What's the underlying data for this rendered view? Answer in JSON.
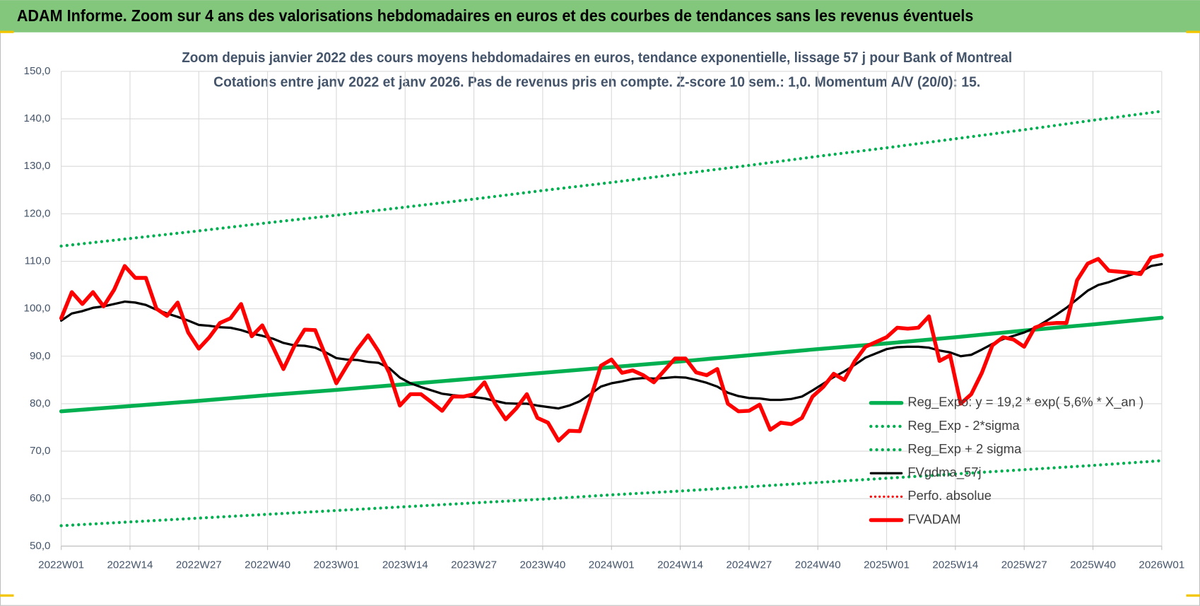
{
  "header": {
    "title": "ADAM Informe. Zoom sur 4 ans des valorisations hebdomadaires en euros et des courbes de tendances sans les revenus éventuels"
  },
  "chart_data": {
    "type": "line",
    "title": "Zoom depuis janvier 2022 des cours moyens hebdomadaires en euros, tendance exponentielle, lissage 57 j pour Bank of Montreal",
    "subtitle": "Cotations entre janv 2022 et janv 2026. Pas de revenus pris en compte. Z-score 10 sem.: 1,0. Momentum A/V (20/0): 15.",
    "legend": "right",
    "grid": true,
    "xlim": [
      0,
      208
    ],
    "xticks": [
      {
        "value": 0,
        "label": "2022W01"
      },
      {
        "value": 13,
        "label": "2022W14"
      },
      {
        "value": 26,
        "label": "2022W27"
      },
      {
        "value": 39,
        "label": "2022W40"
      },
      {
        "value": 52,
        "label": "2023W01"
      },
      {
        "value": 65,
        "label": "2023W14"
      },
      {
        "value": 78,
        "label": "2023W27"
      },
      {
        "value": 91,
        "label": "2023W40"
      },
      {
        "value": 104,
        "label": "2024W01"
      },
      {
        "value": 117,
        "label": "2024W14"
      },
      {
        "value": 130,
        "label": "2024W27"
      },
      {
        "value": 143,
        "label": "2024W40"
      },
      {
        "value": 156,
        "label": "2025W01"
      },
      {
        "value": 169,
        "label": "2025W14"
      },
      {
        "value": 182,
        "label": "2025W27"
      },
      {
        "value": 195,
        "label": "2025W40"
      },
      {
        "value": 208,
        "label": "2026W01"
      }
    ],
    "ylim": [
      50,
      150
    ],
    "yticks": [
      {
        "value": 50,
        "label": "50,0"
      },
      {
        "value": 60,
        "label": "60,0"
      },
      {
        "value": 70,
        "label": "70,0"
      },
      {
        "value": 80,
        "label": "80,0"
      },
      {
        "value": 90,
        "label": "90,0"
      },
      {
        "value": 100,
        "label": "100,0"
      },
      {
        "value": 110,
        "label": "110,0"
      },
      {
        "value": 120,
        "label": "120,0"
      },
      {
        "value": 130,
        "label": "130,0"
      },
      {
        "value": 140,
        "label": "140,0"
      },
      {
        "value": 150,
        "label": "150,0"
      }
    ],
    "x": [
      0,
      2,
      4,
      6,
      8,
      10,
      12,
      14,
      16,
      18,
      20,
      22,
      24,
      26,
      28,
      30,
      32,
      34,
      36,
      38,
      40,
      42,
      44,
      46,
      48,
      50,
      52,
      54,
      56,
      58,
      60,
      62,
      64,
      66,
      68,
      70,
      72,
      74,
      76,
      78,
      80,
      82,
      84,
      86,
      88,
      90,
      92,
      94,
      96,
      98,
      100,
      102,
      104,
      106,
      108,
      110,
      112,
      114,
      116,
      118,
      120,
      122,
      124,
      126,
      128,
      130,
      132,
      134,
      136,
      138,
      140,
      142,
      144,
      146,
      148,
      150,
      152,
      154,
      156,
      158,
      160,
      162,
      164,
      166,
      168,
      170,
      172,
      174,
      176,
      178,
      180,
      182,
      184,
      186,
      188,
      190,
      192,
      194,
      196,
      198,
      200,
      202,
      204,
      206,
      208
    ],
    "series": [
      {
        "name": "Reg_Expo: y = 19,2 * exp( 5,6% *  X_an )",
        "color": "#00b050",
        "style": "solid",
        "width": 5,
        "x": [
          0,
          13,
          26,
          39,
          52,
          65,
          78,
          91,
          104,
          117,
          130,
          143,
          156,
          169,
          182,
          195,
          208
        ],
        "values": [
          78.4,
          79.5,
          80.6,
          81.8,
          82.9,
          84.1,
          85.3,
          86.5,
          87.7,
          88.9,
          90.2,
          91.5,
          92.7,
          94.0,
          95.4,
          96.7,
          98.1
        ]
      },
      {
        "name": "Reg_Exp - 2*sigma",
        "color": "#00b050",
        "style": "dotted",
        "width": 4,
        "x": [
          0,
          13,
          26,
          39,
          52,
          65,
          78,
          91,
          104,
          117,
          130,
          143,
          156,
          169,
          182,
          195,
          208
        ],
        "values": [
          54.3,
          55.1,
          55.9,
          56.7,
          57.5,
          58.3,
          59.1,
          59.9,
          60.8,
          61.6,
          62.5,
          63.4,
          64.3,
          65.2,
          66.1,
          67.0,
          68.0
        ]
      },
      {
        "name": "Reg_Exp + 2 sigma",
        "color": "#00b050",
        "style": "dotted",
        "width": 4,
        "x": [
          0,
          13,
          26,
          39,
          52,
          65,
          78,
          91,
          104,
          117,
          130,
          143,
          156,
          169,
          182,
          195,
          208
        ],
        "values": [
          113.2,
          114.8,
          116.4,
          118.1,
          119.7,
          121.4,
          123.1,
          124.9,
          126.6,
          128.4,
          130.2,
          132.1,
          133.9,
          135.8,
          137.7,
          139.7,
          141.6
        ]
      },
      {
        "name": "FVgdma_57j",
        "color": "#000000",
        "style": "solid",
        "width": 3,
        "values": [
          97.5,
          99,
          99.5,
          100.2,
          100.5,
          101,
          101.5,
          101.3,
          100.8,
          99.8,
          99,
          98.3,
          97.5,
          96.6,
          96.4,
          96.1,
          96,
          95.5,
          94.8,
          94.3,
          93.7,
          92.8,
          92.3,
          92.2,
          91.8,
          90.8,
          89.6,
          89.3,
          89.2,
          88.8,
          88.6,
          87.5,
          85.5,
          84.3,
          83.5,
          82.8,
          82.1,
          81.8,
          81.6,
          81.4,
          81.1,
          80.6,
          80.1,
          80,
          80,
          79.6,
          79.3,
          79,
          79.6,
          80.5,
          82,
          83.6,
          84.3,
          84.7,
          85.2,
          85.4,
          85.3,
          85.4,
          85.6,
          85.5,
          85,
          84.4,
          83.6,
          82.3,
          81.6,
          81.2,
          81.1,
          80.8,
          80.8,
          81,
          81.5,
          82.8,
          84.2,
          85.6,
          86.8,
          88.2,
          89.7,
          90.6,
          91.5,
          91.9,
          92,
          92,
          91.8,
          91.2,
          90.8,
          90,
          90.3,
          91.4,
          92.6,
          93.6,
          94.3,
          95,
          96,
          97.3,
          98.7,
          100.2,
          102,
          103.8,
          105,
          105.6,
          106.4,
          107.1,
          107.8,
          109,
          109.4
        ]
      },
      {
        "name": "Perfo. absolue",
        "color": "#ff0000",
        "style": "dotted",
        "width": 3,
        "x": [],
        "values": []
      },
      {
        "name": "FVADAM",
        "color": "#ff0000",
        "style": "solid",
        "width": 5,
        "values": [
          98,
          103.5,
          101,
          103.5,
          100.5,
          104,
          109,
          106.5,
          106.5,
          100,
          98.5,
          101.3,
          95,
          91.6,
          94,
          97,
          98,
          101,
          94.2,
          96.5,
          92,
          87.3,
          92,
          95.6,
          95.5,
          90,
          84.3,
          88,
          91.5,
          94.4,
          91,
          86.5,
          79.6,
          82,
          82,
          80.3,
          78.5,
          81.5,
          81.5,
          82,
          84.5,
          80,
          76.7,
          79,
          82,
          77,
          76,
          72.2,
          74.3,
          74.2,
          81,
          88,
          89.3,
          86.5,
          87,
          86,
          84.5,
          87,
          89.5,
          89.5,
          86.6,
          86,
          87.3,
          80,
          78.4,
          78.5,
          79.8,
          74.5,
          76,
          75.7,
          77,
          81.5,
          83.5,
          86.3,
          85,
          89,
          92,
          93,
          94,
          96,
          95.8,
          96,
          98.4,
          89,
          90.2,
          80,
          82,
          86.5,
          92.3,
          94,
          93.5,
          92,
          96,
          96.8,
          97,
          97,
          106,
          109.5,
          110.5,
          108,
          107.8,
          107.6,
          107.3,
          110.8,
          111.3
        ]
      }
    ]
  }
}
